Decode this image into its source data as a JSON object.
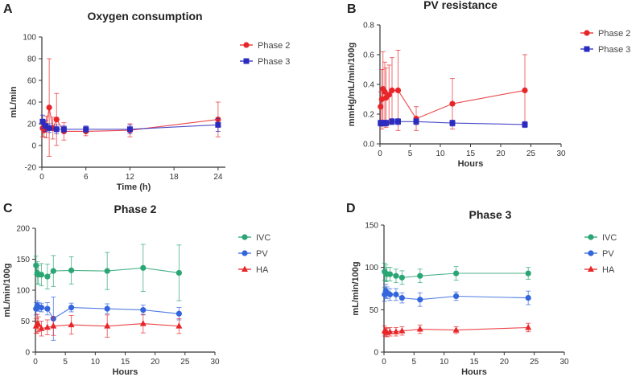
{
  "chart_data": [
    {
      "panel": "A",
      "type": "line",
      "title": "Oxygen consumption",
      "xlabel": "Time (h)",
      "ylabel": "mL/min",
      "xlim": [
        0,
        25
      ],
      "ylim": [
        -20,
        100
      ],
      "xticks": [
        0,
        6,
        12,
        18,
        24
      ],
      "yticks": [
        -20,
        0,
        20,
        40,
        60,
        80,
        100
      ],
      "series": [
        {
          "name": "Phase 2",
          "color": "#e8262a",
          "marker": "circle",
          "x": [
            0.1,
            0.3,
            0.6,
            1.0,
            1.5,
            2,
            3,
            6,
            12,
            24
          ],
          "y": [
            16,
            14,
            17,
            35,
            16,
            24,
            13,
            13,
            14,
            24
          ],
          "err": [
            8,
            6,
            10,
            45,
            10,
            24,
            8,
            4,
            6,
            16
          ]
        },
        {
          "name": "Phase 3",
          "color": "#2b2bbf",
          "marker": "square",
          "x": [
            0.1,
            0.5,
            1.0,
            2,
            3,
            6,
            12,
            24
          ],
          "y": [
            22,
            18,
            16,
            15,
            15,
            15,
            15,
            19
          ],
          "err": [
            6,
            5,
            4,
            4,
            3,
            3,
            4,
            6
          ]
        }
      ]
    },
    {
      "panel": "B",
      "type": "line",
      "title": "PV resistance",
      "xlabel": "Hours",
      "ylabel": "mmHg/mL/min/100g",
      "xlim": [
        0,
        30
      ],
      "ylim": [
        0,
        0.8
      ],
      "xticks": [
        0,
        5,
        10,
        15,
        20,
        25,
        30
      ],
      "yticks": [
        0.0,
        0.2,
        0.4,
        0.6,
        0.8
      ],
      "series": [
        {
          "name": "Phase 2",
          "color": "#e8262a",
          "marker": "circle",
          "x": [
            0.1,
            0.3,
            0.5,
            0.8,
            1.0,
            1.5,
            2,
            3,
            6,
            12,
            24
          ],
          "y": [
            0.25,
            0.3,
            0.37,
            0.35,
            0.31,
            0.33,
            0.36,
            0.36,
            0.17,
            0.27,
            0.36
          ],
          "err": [
            0.1,
            0.2,
            0.25,
            0.2,
            0.2,
            0.2,
            0.22,
            0.27,
            0.08,
            0.17,
            0.24
          ]
        },
        {
          "name": "Phase 3",
          "color": "#2b2bbf",
          "marker": "square",
          "x": [
            0.1,
            0.5,
            1.0,
            2,
            3,
            6,
            12,
            24
          ],
          "y": [
            0.14,
            0.14,
            0.14,
            0.15,
            0.15,
            0.15,
            0.14,
            0.13
          ],
          "err": [
            0.02,
            0.02,
            0.02,
            0.02,
            0.02,
            0.02,
            0.02,
            0.02
          ]
        }
      ]
    },
    {
      "panel": "C",
      "type": "line",
      "title": "Phase 2",
      "xlabel": "Hours",
      "ylabel": "mL/min/100g",
      "xlim": [
        0,
        30
      ],
      "ylim": [
        0,
        200
      ],
      "xticks": [
        0,
        5,
        10,
        15,
        20,
        25,
        30
      ],
      "yticks": [
        0,
        50,
        100,
        150,
        200
      ],
      "series": [
        {
          "name": "IVC",
          "color": "#2aa574",
          "marker": "circle",
          "x": [
            0.1,
            0.3,
            0.5,
            1,
            2,
            3,
            6,
            12,
            18,
            24
          ],
          "y": [
            140,
            128,
            125,
            125,
            122,
            131,
            132,
            131,
            136,
            128
          ],
          "err": [
            15,
            18,
            15,
            18,
            20,
            25,
            22,
            30,
            38,
            45
          ]
        },
        {
          "name": "PV",
          "color": "#3366dd",
          "marker": "circle",
          "x": [
            0.1,
            0.3,
            0.5,
            1,
            2,
            3,
            6,
            12,
            18,
            24
          ],
          "y": [
            70,
            75,
            73,
            72,
            70,
            54,
            72,
            70,
            68,
            62
          ],
          "err": [
            10,
            8,
            7,
            7,
            10,
            35,
            7,
            8,
            8,
            10
          ]
        },
        {
          "name": "HA",
          "color": "#e8262a",
          "marker": "triangle",
          "x": [
            0.1,
            0.3,
            0.5,
            1,
            2,
            3,
            6,
            12,
            18,
            24
          ],
          "y": [
            42,
            46,
            45,
            38,
            40,
            42,
            44,
            42,
            46,
            42
          ],
          "err": [
            12,
            15,
            12,
            12,
            12,
            15,
            15,
            18,
            15,
            12
          ]
        }
      ]
    },
    {
      "panel": "D",
      "type": "line",
      "title": "Phase 3",
      "xlabel": "Hours",
      "ylabel": "mL/min/100g",
      "xlim": [
        0,
        30
      ],
      "ylim": [
        0,
        150
      ],
      "xticks": [
        0,
        5,
        10,
        15,
        20,
        25,
        30
      ],
      "yticks": [
        0,
        50,
        100,
        150
      ],
      "series": [
        {
          "name": "IVC",
          "color": "#2aa574",
          "marker": "circle",
          "x": [
            0.1,
            0.3,
            0.5,
            1,
            2,
            3,
            6,
            12,
            24
          ],
          "y": [
            95,
            93,
            92,
            92,
            90,
            88,
            90,
            93,
            93
          ],
          "err": [
            10,
            10,
            8,
            8,
            8,
            8,
            8,
            8,
            7
          ]
        },
        {
          "name": "PV",
          "color": "#3366dd",
          "marker": "circle",
          "x": [
            0.1,
            0.3,
            0.5,
            1,
            2,
            3,
            6,
            12,
            24
          ],
          "y": [
            68,
            72,
            70,
            68,
            68,
            64,
            62,
            66,
            64
          ],
          "err": [
            8,
            8,
            7,
            7,
            7,
            6,
            8,
            5,
            8
          ]
        },
        {
          "name": "HA",
          "color": "#e8262a",
          "marker": "triangle",
          "x": [
            0.1,
            0.3,
            0.5,
            1,
            2,
            3,
            6,
            12,
            24
          ],
          "y": [
            25,
            24,
            23,
            24,
            24,
            25,
            27,
            26,
            29
          ],
          "err": [
            6,
            5,
            5,
            5,
            5,
            5,
            5,
            4,
            5
          ]
        }
      ]
    }
  ]
}
